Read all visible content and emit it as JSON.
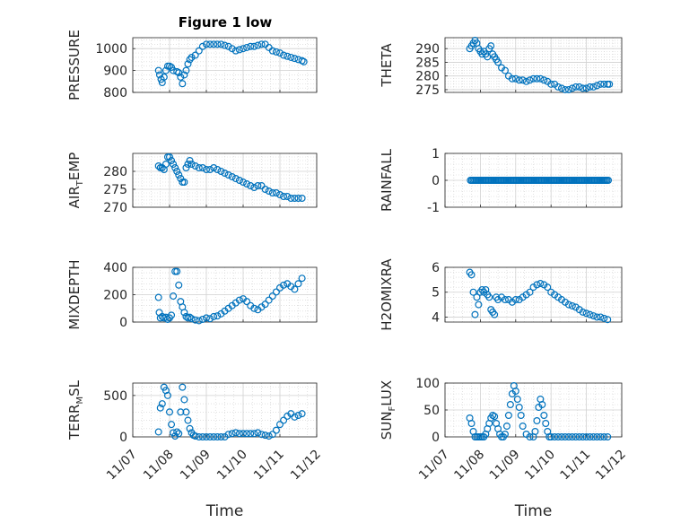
{
  "figure": {
    "title": "Figure 1 low"
  },
  "colors": {
    "marker": "#0072BD",
    "grid": "#d0d0d0",
    "axis": "#262626"
  },
  "chart_data": [
    {
      "type": "scatter",
      "ylabel": "PRESSURE",
      "xlabel": "",
      "ylim": [
        800,
        1050
      ],
      "yticks": [
        800,
        900,
        1000
      ],
      "ytick_labels": [
        "800",
        "900",
        "1000"
      ],
      "xlim": [
        0,
        5
      ],
      "grid": "minor-dotted",
      "marker": "open-circle",
      "x": [
        0.7,
        0.73,
        0.77,
        0.8,
        0.85,
        0.9,
        0.95,
        1.0,
        1.05,
        1.1,
        1.2,
        1.25,
        1.3,
        1.35,
        1.4,
        1.45,
        1.5,
        1.55,
        1.6,
        1.7,
        1.8,
        1.9,
        2.0,
        2.1,
        2.2,
        2.3,
        2.4,
        2.5,
        2.6,
        2.7,
        2.8,
        2.9,
        3.0,
        3.1,
        3.2,
        3.3,
        3.4,
        3.5,
        3.6,
        3.7,
        3.8,
        3.9,
        4.0,
        4.1,
        4.2,
        4.3,
        4.4,
        4.5,
        4.6,
        4.65
      ],
      "y": [
        900,
        880,
        860,
        845,
        870,
        900,
        920,
        920,
        915,
        900,
        895,
        890,
        870,
        840,
        880,
        900,
        930,
        950,
        960,
        970,
        990,
        1010,
        1020,
        1020,
        1020,
        1020,
        1020,
        1015,
        1010,
        1000,
        990,
        995,
        1000,
        1005,
        1010,
        1010,
        1015,
        1020,
        1020,
        1005,
        990,
        985,
        980,
        970,
        965,
        960,
        955,
        950,
        945,
        940
      ]
    },
    {
      "type": "scatter",
      "ylabel": "THETA",
      "xlabel": "",
      "ylim": [
        274,
        294
      ],
      "yticks": [
        275,
        280,
        285,
        290
      ],
      "ytick_labels": [
        "275",
        "280",
        "285",
        "290"
      ],
      "xlim": [
        0,
        5
      ],
      "grid": "minor-dotted",
      "marker": "open-circle",
      "x": [
        0.7,
        0.75,
        0.8,
        0.85,
        0.9,
        0.95,
        1.0,
        1.05,
        1.1,
        1.15,
        1.2,
        1.25,
        1.3,
        1.35,
        1.4,
        1.45,
        1.5,
        1.6,
        1.7,
        1.8,
        1.9,
        2.0,
        2.1,
        2.2,
        2.3,
        2.4,
        2.5,
        2.6,
        2.7,
        2.8,
        2.9,
        3.0,
        3.1,
        3.2,
        3.3,
        3.4,
        3.5,
        3.6,
        3.7,
        3.8,
        3.9,
        4.0,
        4.1,
        4.2,
        4.3,
        4.4,
        4.5,
        4.6,
        4.65
      ],
      "y": [
        290,
        291,
        292,
        293,
        292,
        290,
        289,
        288,
        289,
        288,
        287,
        290,
        291,
        288,
        287,
        286,
        285,
        283,
        282,
        280,
        279,
        279,
        278.5,
        278.5,
        278,
        278.5,
        279,
        279,
        279,
        278.5,
        278,
        277,
        277,
        276,
        275.5,
        275,
        275,
        275.5,
        276,
        276,
        275.5,
        275.5,
        276,
        276,
        276.5,
        277,
        277,
        277,
        277
      ]
    },
    {
      "type": "scatter",
      "ylabel": "AIR_TEMP",
      "xlabel": "",
      "ylim": [
        270,
        285
      ],
      "yticks": [
        270,
        275,
        280
      ],
      "ytick_labels": [
        "270",
        "275",
        "280"
      ],
      "xlim": [
        0,
        5
      ],
      "grid": "minor-dotted",
      "marker": "open-circle",
      "x": [
        0.7,
        0.75,
        0.8,
        0.85,
        0.9,
        0.95,
        1.0,
        1.05,
        1.1,
        1.15,
        1.2,
        1.25,
        1.3,
        1.35,
        1.4,
        1.45,
        1.5,
        1.55,
        1.6,
        1.7,
        1.8,
        1.9,
        2.0,
        2.1,
        2.2,
        2.3,
        2.4,
        2.5,
        2.6,
        2.7,
        2.8,
        2.9,
        3.0,
        3.1,
        3.2,
        3.3,
        3.4,
        3.5,
        3.6,
        3.7,
        3.8,
        3.9,
        4.0,
        4.1,
        4.2,
        4.3,
        4.4,
        4.5,
        4.6
      ],
      "y": [
        281.5,
        281,
        281,
        280.5,
        282,
        284,
        284,
        283,
        282,
        281,
        280,
        279,
        278,
        277,
        277,
        281,
        282,
        283,
        282,
        281.5,
        281,
        281,
        280.5,
        280.5,
        281,
        280.5,
        280,
        279.5,
        279,
        278.5,
        278,
        277.5,
        277,
        276.5,
        276,
        275.5,
        276,
        276,
        275,
        274.5,
        274,
        274,
        273.5,
        273,
        273,
        272.5,
        272.5,
        272.5,
        272.5
      ]
    },
    {
      "type": "scatter",
      "ylabel": "RAINFALL",
      "xlabel": "",
      "ylim": [
        -1,
        1
      ],
      "yticks": [
        -1,
        0,
        1
      ],
      "ytick_labels": [
        "-1",
        "0",
        "1"
      ],
      "xlim": [
        0,
        5
      ],
      "grid": "minor-dotted",
      "marker": "open-circle",
      "x_range": [
        0.72,
        4.62
      ],
      "x_count": 100,
      "constant": 0
    },
    {
      "type": "scatter",
      "ylabel": "MIXDEPTH",
      "xlabel": "",
      "ylim": [
        0,
        400
      ],
      "yticks": [
        0,
        200,
        400
      ],
      "ytick_labels": [
        "0",
        "200",
        "400"
      ],
      "xlim": [
        0,
        5
      ],
      "grid": "minor-dotted",
      "marker": "open-circle",
      "x": [
        0.7,
        0.72,
        0.75,
        0.8,
        0.85,
        0.9,
        0.95,
        1.0,
        1.05,
        1.1,
        1.15,
        1.2,
        1.25,
        1.3,
        1.35,
        1.4,
        1.45,
        1.5,
        1.55,
        1.6,
        1.7,
        1.8,
        1.9,
        2.0,
        2.1,
        2.2,
        2.3,
        2.4,
        2.5,
        2.6,
        2.7,
        2.8,
        2.9,
        3.0,
        3.1,
        3.2,
        3.3,
        3.4,
        3.5,
        3.6,
        3.7,
        3.8,
        3.9,
        4.0,
        4.1,
        4.2,
        4.3,
        4.4,
        4.5,
        4.6
      ],
      "y": [
        180,
        70,
        30,
        40,
        30,
        35,
        20,
        30,
        50,
        190,
        370,
        370,
        270,
        150,
        110,
        70,
        40,
        30,
        35,
        25,
        15,
        10,
        20,
        30,
        25,
        40,
        45,
        60,
        80,
        100,
        120,
        140,
        160,
        170,
        150,
        120,
        100,
        90,
        110,
        130,
        160,
        190,
        220,
        250,
        270,
        280,
        260,
        240,
        280,
        320
      ]
    },
    {
      "type": "scatter",
      "ylabel": "H2OMIXRA",
      "xlabel": "",
      "ylim": [
        3.8,
        6
      ],
      "yticks": [
        4,
        5,
        6
      ],
      "ytick_labels": [
        "4",
        "5",
        "6"
      ],
      "xlim": [
        0,
        5
      ],
      "grid": "minor-dotted",
      "marker": "open-circle",
      "x": [
        0.7,
        0.75,
        0.8,
        0.85,
        0.9,
        0.95,
        1.0,
        1.05,
        1.1,
        1.15,
        1.2,
        1.25,
        1.3,
        1.35,
        1.4,
        1.45,
        1.5,
        1.6,
        1.7,
        1.8,
        1.9,
        2.0,
        2.1,
        2.2,
        2.3,
        2.4,
        2.5,
        2.6,
        2.7,
        2.8,
        2.9,
        3.0,
        3.1,
        3.2,
        3.3,
        3.4,
        3.5,
        3.6,
        3.7,
        3.8,
        3.9,
        4.0,
        4.1,
        4.2,
        4.3,
        4.4,
        4.5,
        4.6
      ],
      "y": [
        5.8,
        5.7,
        5.0,
        4.1,
        4.8,
        4.5,
        5.0,
        5.1,
        5.0,
        5.1,
        4.9,
        4.8,
        4.3,
        4.2,
        4.1,
        4.8,
        4.7,
        4.8,
        4.7,
        4.7,
        4.6,
        4.7,
        4.7,
        4.8,
        4.9,
        5.0,
        5.2,
        5.3,
        5.35,
        5.3,
        5.2,
        5.0,
        4.9,
        4.8,
        4.7,
        4.6,
        4.5,
        4.45,
        4.4,
        4.3,
        4.2,
        4.15,
        4.1,
        4.05,
        4.0,
        4.0,
        3.95,
        3.9
      ]
    },
    {
      "type": "scatter",
      "ylabel": "TERR_MSL",
      "xlabel": "Time",
      "ylim": [
        0,
        650
      ],
      "yticks": [
        0,
        500
      ],
      "ytick_labels": [
        "0",
        "500"
      ],
      "xlim": [
        0,
        5
      ],
      "grid": "minor-dotted",
      "marker": "open-circle",
      "xticks": [
        0,
        1,
        2,
        3,
        4,
        5
      ],
      "xtick_labels": [
        "11/07",
        "11/08",
        "11/09",
        "11/10",
        "11/11",
        "11/12"
      ],
      "x": [
        0.7,
        0.75,
        0.8,
        0.85,
        0.9,
        0.95,
        1.0,
        1.05,
        1.1,
        1.15,
        1.2,
        1.25,
        1.3,
        1.35,
        1.4,
        1.45,
        1.5,
        1.55,
        1.6,
        1.65,
        1.7,
        1.8,
        1.9,
        2.0,
        2.1,
        2.2,
        2.3,
        2.4,
        2.5,
        2.6,
        2.7,
        2.8,
        2.9,
        3.0,
        3.1,
        3.2,
        3.3,
        3.4,
        3.5,
        3.6,
        3.7,
        3.8,
        3.9,
        4.0,
        4.1,
        4.2,
        4.3,
        4.4,
        4.5,
        4.6
      ],
      "y": [
        60,
        350,
        400,
        600,
        560,
        500,
        300,
        150,
        50,
        10,
        60,
        40,
        300,
        600,
        450,
        300,
        200,
        100,
        50,
        20,
        10,
        0,
        0,
        0,
        0,
        0,
        0,
        0,
        0,
        30,
        40,
        50,
        40,
        40,
        40,
        40,
        40,
        50,
        30,
        20,
        10,
        30,
        80,
        150,
        200,
        250,
        280,
        240,
        260,
        280
      ]
    },
    {
      "type": "scatter",
      "ylabel": "SUN_FLUX",
      "xlabel": "Time",
      "ylim": [
        0,
        100
      ],
      "yticks": [
        0,
        50,
        100
      ],
      "ytick_labels": [
        "0",
        "50",
        "100"
      ],
      "xlim": [
        0,
        5
      ],
      "grid": "minor-dotted",
      "marker": "open-circle",
      "xticks": [
        0,
        1,
        2,
        3,
        4,
        5
      ],
      "xtick_labels": [
        "11/07",
        "11/08",
        "11/09",
        "11/10",
        "11/11",
        "11/12"
      ],
      "x": [
        0.7,
        0.75,
        0.8,
        0.85,
        0.9,
        0.95,
        1.0,
        1.05,
        1.1,
        1.15,
        1.2,
        1.25,
        1.3,
        1.35,
        1.4,
        1.45,
        1.5,
        1.55,
        1.6,
        1.65,
        1.7,
        1.75,
        1.8,
        1.85,
        1.9,
        1.95,
        2.0,
        2.05,
        2.1,
        2.15,
        2.2,
        2.3,
        2.4,
        2.5,
        2.55,
        2.6,
        2.65,
        2.7,
        2.75,
        2.8,
        2.85,
        2.9,
        2.95,
        3.0,
        3.1,
        3.2,
        3.3,
        3.4,
        3.5,
        3.6,
        3.7,
        3.8,
        3.9,
        4.0,
        4.1,
        4.2,
        4.3,
        4.4,
        4.5,
        4.6
      ],
      "y": [
        35,
        25,
        10,
        0,
        0,
        0,
        0,
        0,
        0,
        5,
        15,
        25,
        35,
        40,
        38,
        25,
        15,
        5,
        0,
        0,
        5,
        20,
        40,
        60,
        80,
        95,
        85,
        70,
        55,
        40,
        20,
        5,
        0,
        0,
        10,
        30,
        55,
        70,
        60,
        40,
        25,
        10,
        0,
        0,
        0,
        0,
        0,
        0,
        0,
        0,
        0,
        0,
        0,
        0,
        0,
        0,
        0,
        0,
        0,
        0
      ]
    }
  ]
}
